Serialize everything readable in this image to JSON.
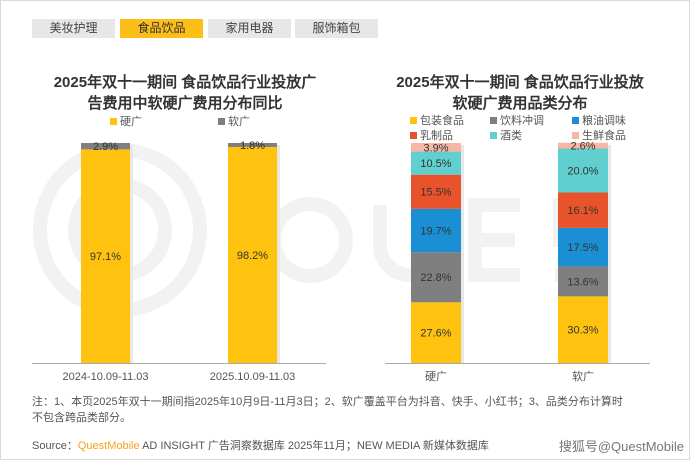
{
  "tabs": [
    {
      "label": "美妆护理",
      "active": false
    },
    {
      "label": "食品饮品",
      "active": true
    },
    {
      "label": "家用电器",
      "active": false
    },
    {
      "label": "服饰箱包",
      "active": false
    }
  ],
  "watermark_bg": "QUESTMOBILE",
  "chart_data": [
    {
      "type": "bar",
      "stacked": true,
      "title": "2025年双十一期间 食品饮品行业投放广告费用中软硬广费用分布同比",
      "title_lines": [
        "2025年双十一期间 食品饮品行业投放广",
        "告费用中软硬广费用分布同比"
      ],
      "categories": [
        "2024-10.09-11.03",
        "2025.10.09-11.03"
      ],
      "series": [
        {
          "name": "硬广",
          "color": "#ffc20e",
          "values": [
            97.1,
            98.2
          ],
          "labels": [
            "97.1%",
            "98.2%"
          ]
        },
        {
          "name": "软广",
          "color": "#7f7f7f",
          "values": [
            2.9,
            1.8
          ],
          "labels": [
            "2.9%",
            "1.8%"
          ]
        }
      ],
      "ylim": [
        0,
        100
      ],
      "legend": "top",
      "grid": false
    },
    {
      "type": "bar",
      "stacked": true,
      "title": "2025年双十一期间 食品饮品行业投放软硬广费用品类分布",
      "title_lines": [
        "2025年双十一期间 食品饮品行业投放",
        "软硬广费用品类分布"
      ],
      "categories": [
        "硬广",
        "软广"
      ],
      "series": [
        {
          "name": "包装食品",
          "color": "#ffc20e",
          "values": [
            27.6,
            30.3
          ],
          "labels": [
            "27.6%",
            "30.3%"
          ]
        },
        {
          "name": "饮料冲调",
          "color": "#7f7f7f",
          "values": [
            22.8,
            13.6
          ],
          "labels": [
            "22.8%",
            "13.6%"
          ]
        },
        {
          "name": "粮油调味",
          "color": "#1a8fd3",
          "values": [
            19.7,
            17.5
          ],
          "labels": [
            "19.7%",
            "17.5%"
          ]
        },
        {
          "name": "乳制品",
          "color": "#e9532c",
          "values": [
            15.5,
            16.1
          ],
          "labels": [
            "15.5%",
            "16.1%"
          ]
        },
        {
          "name": "酒类",
          "color": "#5fcfcf",
          "values": [
            10.5,
            20.0
          ],
          "labels": [
            "10.5%",
            "20.0%"
          ]
        },
        {
          "name": "生鲜食品",
          "color": "#f9b6a4",
          "values": [
            3.9,
            2.6
          ],
          "labels": [
            "3.9%",
            "2.6%"
          ]
        }
      ],
      "ylim": [
        0,
        100
      ],
      "legend": "top",
      "grid": false
    }
  ],
  "note_lines": [
    "注：1、本页2025年双十一期间指2025年10月9日-11月3日；2、软广覆盖平台为抖音、快手、小红书；3、品类分布计算时",
    "不包含跨品类部分。"
  ],
  "source": {
    "prefix": "Source：",
    "brand": "QuestMobile",
    "rest": " AD INSIGHT 广告洞察数据库 2025年11月；NEW MEDIA 新媒体数据库"
  },
  "watermark": "搜狐号@QuestMobile"
}
